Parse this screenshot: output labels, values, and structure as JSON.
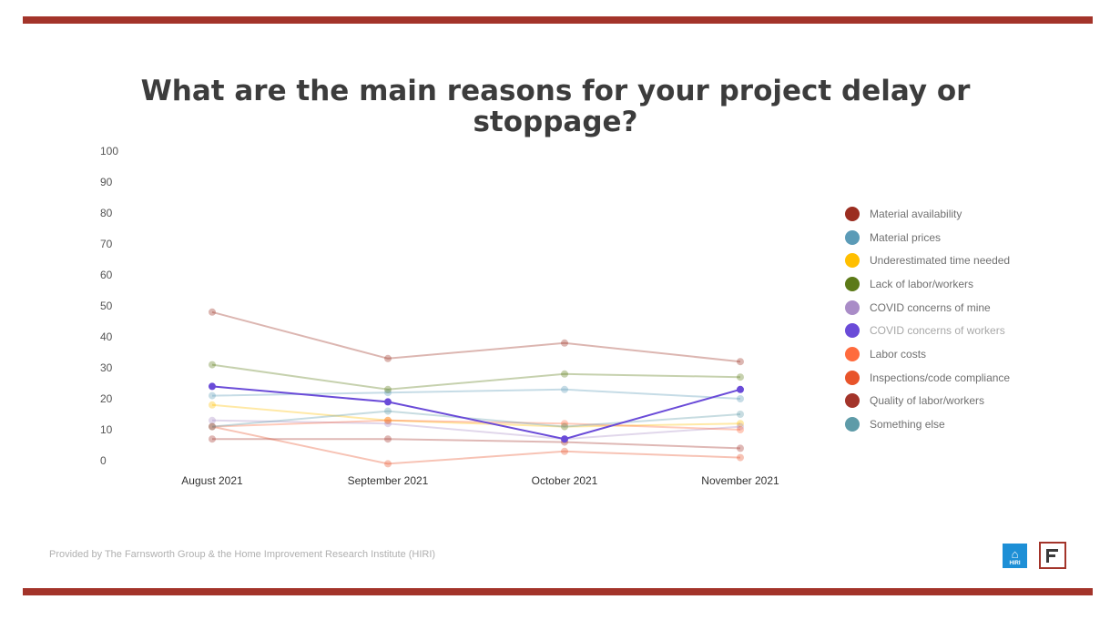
{
  "chart_data": {
    "type": "line",
    "title": "What are the main reasons for your project delay or stoppage?",
    "xlabel": "",
    "ylabel": "",
    "categories": [
      "August 2021",
      "September 2021",
      "October 2021",
      "November 2021"
    ],
    "ylim": [
      0,
      100
    ],
    "yticks": [
      "0",
      "10",
      "20",
      "30",
      "40",
      "50",
      "60",
      "70",
      "80",
      "90",
      "100"
    ],
    "grid": false,
    "legend_position": "right",
    "series": [
      {
        "name": "Material availability",
        "color": "#9b2d20",
        "values": [
          48,
          33,
          38,
          32
        ]
      },
      {
        "name": "Material prices",
        "color": "#5b9bb7",
        "values": [
          21,
          22,
          23,
          20
        ]
      },
      {
        "name": "Underestimated time needed",
        "color": "#ffbf00",
        "values": [
          18,
          13,
          11,
          12
        ]
      },
      {
        "name": "Lack of labor/workers",
        "color": "#5c7a17",
        "values": [
          31,
          23,
          28,
          27
        ]
      },
      {
        "name": "COVID concerns of mine",
        "color": "#a98cc7",
        "values": [
          13,
          12,
          7,
          11
        ]
      },
      {
        "name": "COVID concerns of workers",
        "color": "#6a4bd8",
        "values": [
          24,
          19,
          7,
          23
        ]
      },
      {
        "name": "Labor costs",
        "color": "#ff6b3d",
        "values": [
          11,
          13,
          12,
          10
        ]
      },
      {
        "name": "Inspections/code compliance",
        "color": "#e8542a",
        "values": [
          11,
          -1,
          3,
          1
        ]
      },
      {
        "name": "Quality of labor/workers",
        "color": "#a3342a",
        "values": [
          7,
          7,
          6,
          4
        ]
      },
      {
        "name": "Something else",
        "color": "#5e9ba8",
        "values": [
          11,
          16,
          11,
          15
        ]
      }
    ],
    "highlighted_series": "COVID concerns of workers"
  },
  "footer": {
    "credit": "Provided by The Farnsworth Group & the Home Improvement Research Institute (HIRI)"
  },
  "logos": {
    "hiri": "HIRI",
    "farnsworth": "F"
  }
}
